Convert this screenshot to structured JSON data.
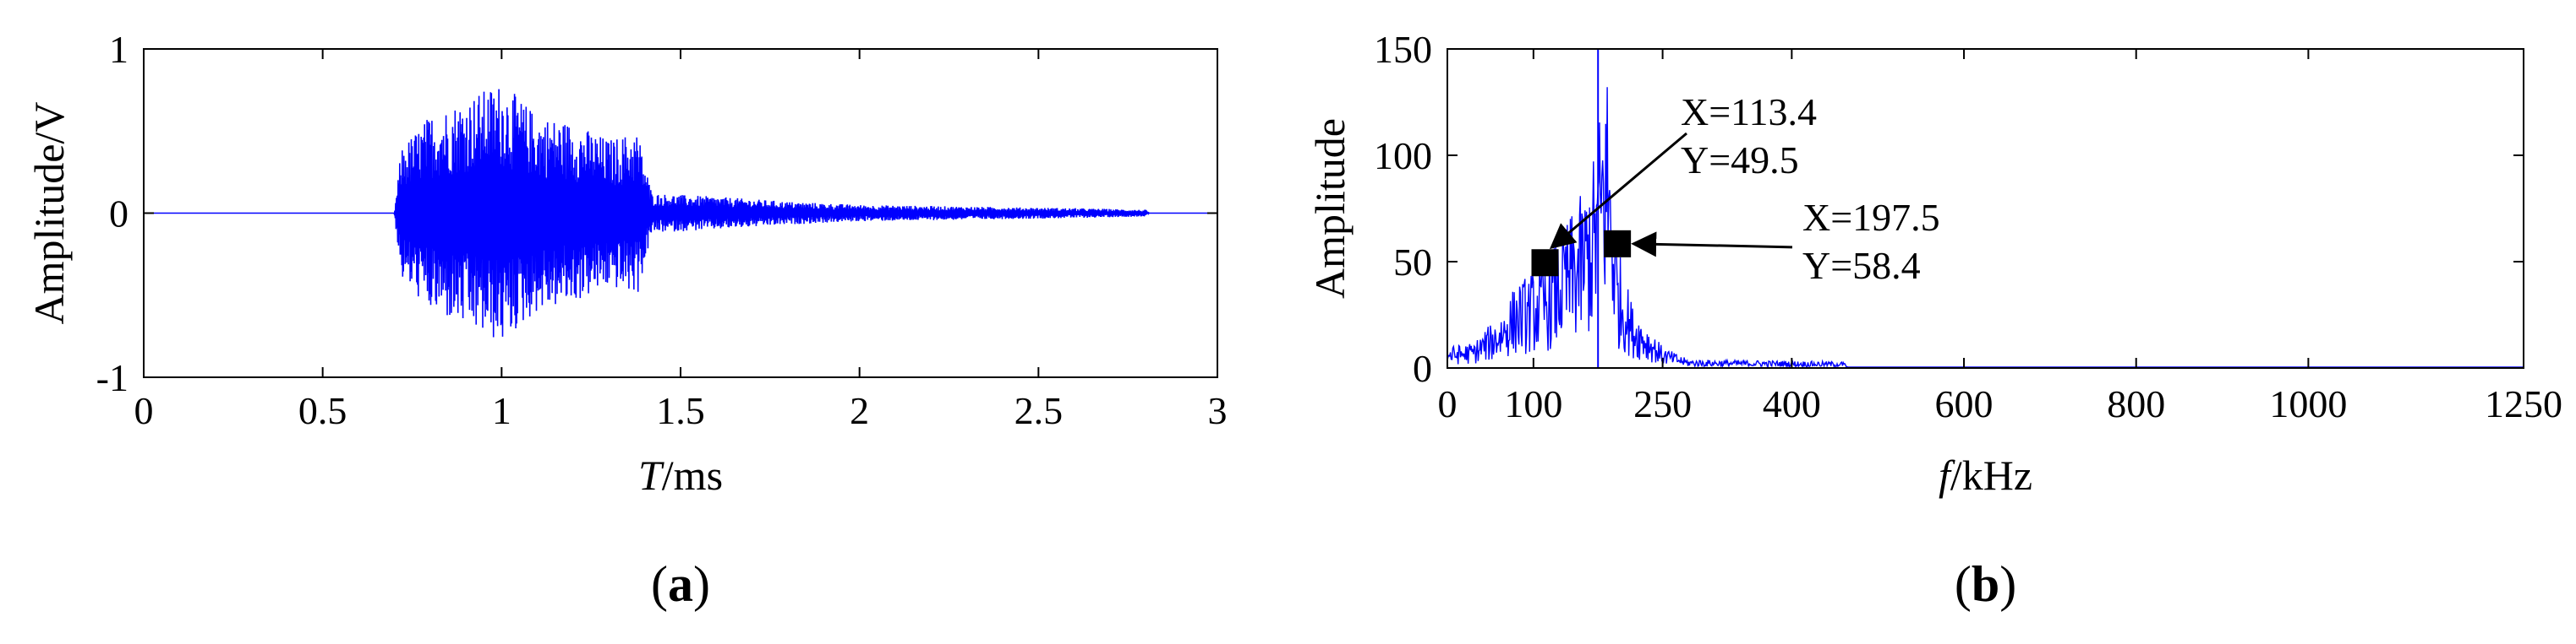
{
  "chart_data": [
    {
      "type": "line",
      "panel_label": "(a)",
      "xlabel_italic": "T",
      "xlabel_rest": "/ms",
      "ylabel": "Amplitude/V",
      "xlim": [
        0,
        3
      ],
      "ylim": [
        -1,
        1
      ],
      "xticks": [
        0,
        0.5,
        1,
        1.5,
        2,
        2.5,
        3
      ],
      "yticks": [
        -1,
        0,
        1
      ],
      "line_color": "#0000ff",
      "signal_onset_ms": 0.7,
      "signal_end_ms": 2.8,
      "peak_positive_V": 0.8,
      "peak_negative_V": -0.77,
      "envelope": [
        {
          "t": 0.0,
          "amp": 0.0
        },
        {
          "t": 0.7,
          "amp": 0.0
        },
        {
          "t": 0.72,
          "amp": 0.4
        },
        {
          "t": 0.8,
          "amp": 0.6
        },
        {
          "t": 0.9,
          "amp": 0.7
        },
        {
          "t": 1.0,
          "amp": 0.8
        },
        {
          "t": 1.1,
          "amp": 0.6
        },
        {
          "t": 1.2,
          "amp": 0.55
        },
        {
          "t": 1.3,
          "amp": 0.45
        },
        {
          "t": 1.38,
          "amp": 0.5
        },
        {
          "t": 1.42,
          "amp": 0.12
        },
        {
          "t": 1.6,
          "amp": 0.1
        },
        {
          "t": 1.8,
          "amp": 0.07
        },
        {
          "t": 2.0,
          "amp": 0.05
        },
        {
          "t": 2.3,
          "amp": 0.04
        },
        {
          "t": 2.6,
          "amp": 0.03
        },
        {
          "t": 2.8,
          "amp": 0.02
        },
        {
          "t": 2.81,
          "amp": 0.0
        },
        {
          "t": 3.0,
          "amp": 0.0
        }
      ]
    },
    {
      "type": "line",
      "panel_label": "(b)",
      "xlabel_italic": "f",
      "xlabel_rest": "/kHz",
      "ylabel": "Amplitude",
      "xlim": [
        0,
        1250
      ],
      "ylim": [
        0,
        150
      ],
      "xticks": [
        0,
        100,
        250,
        400,
        600,
        800,
        1000,
        1250
      ],
      "yticks": [
        0,
        50,
        100,
        150
      ],
      "line_color": "#0000ff",
      "envelope": [
        {
          "f": 0,
          "amp": 10
        },
        {
          "f": 30,
          "amp": 12
        },
        {
          "f": 60,
          "amp": 25
        },
        {
          "f": 80,
          "amp": 40
        },
        {
          "f": 113.4,
          "amp": 49.5
        },
        {
          "f": 140,
          "amp": 70
        },
        {
          "f": 160,
          "amp": 85
        },
        {
          "f": 170,
          "amp": 100
        },
        {
          "f": 185,
          "amp": 150
        },
        {
          "f": 197.5,
          "amp": 58.4
        },
        {
          "f": 215,
          "amp": 30
        },
        {
          "f": 250,
          "amp": 10
        },
        {
          "f": 280,
          "amp": 4
        },
        {
          "f": 460,
          "amp": 3
        },
        {
          "f": 465,
          "amp": 0.5
        },
        {
          "f": 1250,
          "amp": 0.5
        }
      ],
      "annotations": [
        {
          "x": 113.4,
          "y": 49.5,
          "label_x": "X=113.4",
          "label_y": "Y=49.5"
        },
        {
          "x": 197.5,
          "y": 58.4,
          "label_x": "X=197.5",
          "label_y": "Y=58.4"
        }
      ]
    }
  ]
}
